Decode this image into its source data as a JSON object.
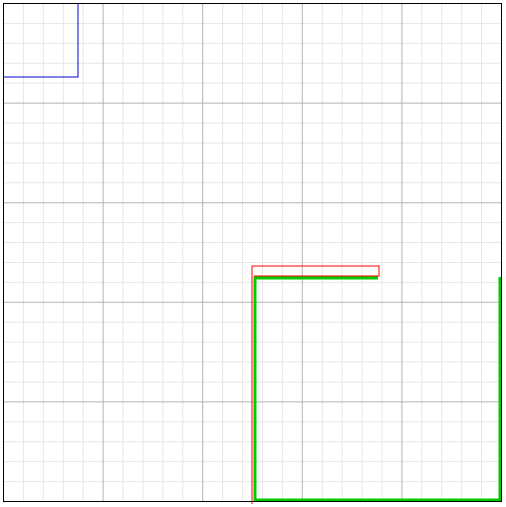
{
  "canvas": {
    "background": "#ffffff",
    "border_color": "#000000"
  },
  "grid": {
    "major_color": "#b3b3b3",
    "minor_color": "#e6e6e6",
    "major_divisions": 5,
    "minor_per_major": 5
  },
  "shapes": [
    {
      "name": "blue-rectangle-outline",
      "color": "#0000cc"
    },
    {
      "name": "red-path",
      "color": "#ff0000"
    },
    {
      "name": "green-path",
      "color": "#00cc00"
    }
  ]
}
